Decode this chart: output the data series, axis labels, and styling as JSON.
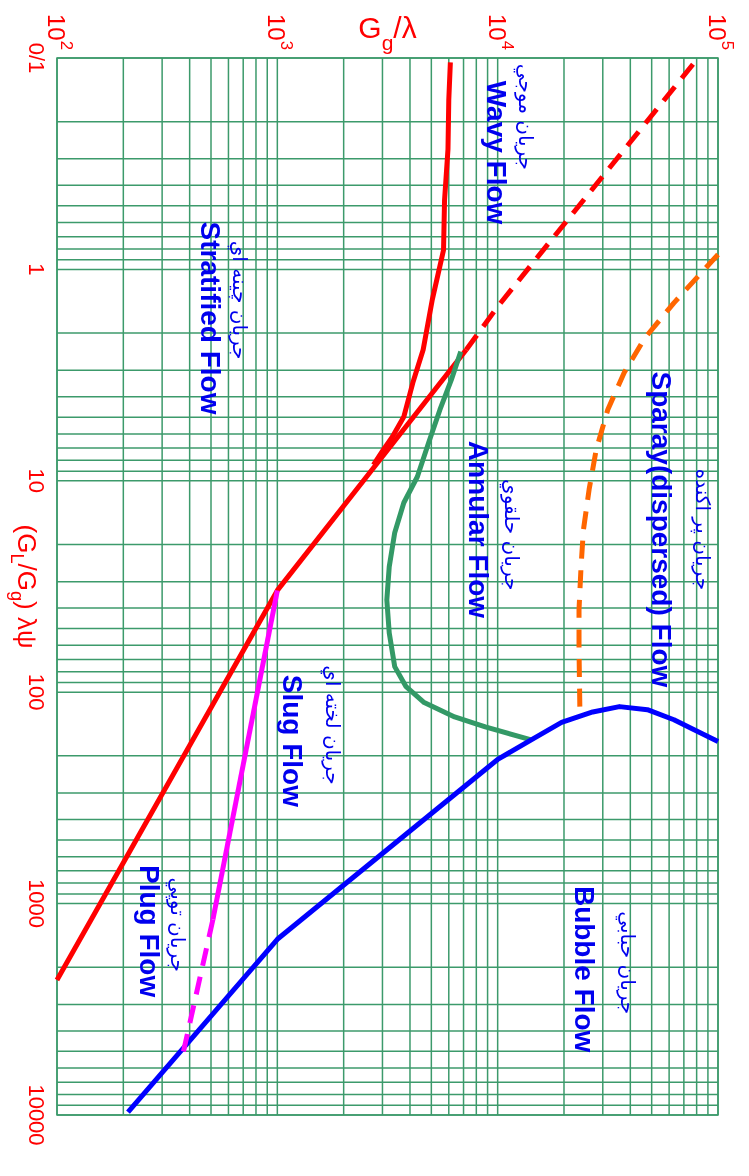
{
  "chart_data": {
    "type": "line",
    "xlabel": "G$_{g}$/λ",
    "ylabel": "(G$_{L}$/G$_{g}$) λψ",
    "log": "xy",
    "xlim": [
      100,
      100000
    ],
    "xticks": [
      {
        "value": 100,
        "label": "10$^{2}$"
      },
      {
        "value": 1000,
        "label": "10$^{3}$"
      },
      {
        "value": 10000,
        "label": "10$^{4}$"
      },
      {
        "value": 100000,
        "label": "10$^{5}$"
      }
    ],
    "ylim": [
      10000,
      0.1
    ],
    "yticks": [
      {
        "value": 0.1,
        "label": "0/1"
      },
      1,
      10,
      100,
      1000,
      10000
    ],
    "grid": true,
    "series": [
      {
        "color": "#ff0000",
        "line_style": "solid",
        "x": [
          6100,
          6000,
          5950,
          5740,
          5680,
          5050,
          4590,
          4120,
          3750,
          3330,
          3030,
          2730
        ],
        "values": [
          0.105,
          0.158,
          0.27,
          0.47,
          0.81,
          1.39,
          2.4,
          3.44,
          4.98,
          6.19,
          7.13,
          8.4
        ]
      },
      {
        "color": "#ff0000",
        "line_style": "solid",
        "x": [
          100,
          1000,
          7200
        ],
        "values": [
          2300,
          33,
          2.4
        ]
      },
      {
        "color": "#ff0000",
        "line_style": "dashed",
        "x": [
          7200,
          10000,
          77000
        ],
        "values": [
          2.4,
          1.5,
          0.107
        ]
      },
      {
        "color": "#339966",
        "line_style": "solid",
        "x": [
          6800,
          6160,
          5470,
          4860,
          4320,
          3750,
          3410,
          3220,
          3140,
          3220,
          3410,
          3840,
          4640,
          6380,
          8790,
          14200
        ],
        "values": [
          2.45,
          3.33,
          4.61,
          6.61,
          9.57,
          12.7,
          17.6,
          25.5,
          36.6,
          52.4,
          75.7,
          94.2,
          112,
          131,
          146,
          168
        ]
      },
      {
        "color": "#ff6600",
        "line_style": "dashed",
        "x": [
          100000,
          63100,
          46600,
          37500,
          31600,
          28000,
          26000,
          24500,
          23900,
          23400,
          23400,
          23600
        ],
        "values": [
          0.85,
          1.44,
          2.11,
          3.08,
          4.61,
          7.13,
          11,
          17.1,
          25.5,
          40.7,
          62.9,
          117
        ]
      },
      {
        "color": "#0000ff",
        "line_style": "solid",
        "x": [
          210,
          1000,
          8790,
          10000,
          14200,
          19500,
          27000,
          35700,
          47800,
          63100,
          77500,
          100000
        ],
        "values": [
          9700,
          1475,
          232,
          208,
          168,
          139,
          124,
          117,
          121,
          135,
          150,
          171
        ]
      },
      {
        "color": "#ff00ff",
        "line_style": "solid",
        "x": [
          1000,
          510
        ],
        "values": [
          33,
          1190
        ]
      },
      {
        "color": "#ff00ff",
        "line_style": "dashed",
        "x": [
          510,
          375
        ],
        "values": [
          1190,
          5010
        ]
      }
    ],
    "annotations": [
      "Wavy Flow",
      "جريان موجي",
      "Stratified Flow",
      "جريان چينه اي",
      "Sparay(dispersed) Flow",
      "جريان پر اكنده",
      "Annular Flow",
      "جريان حلقوي",
      "Slug Flow",
      "جريان لخته اي",
      "Plug Flow",
      "جريان توپي",
      "Bubble Flow",
      "جريان حبابي"
    ]
  }
}
